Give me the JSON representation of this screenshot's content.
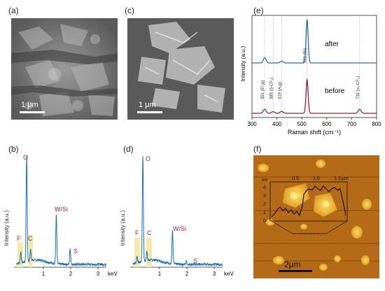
{
  "panels": {
    "a": {
      "label": "(a)",
      "scale": "1 μm"
    },
    "b": {
      "label": "(b)",
      "ylabel": "Intensity (a.u.)",
      "xunit": "keV",
      "xticks": [
        "1",
        "2",
        "3"
      ],
      "peaks": {
        "O": "O",
        "F": "F",
        "C": "C",
        "WSi": "W/Si",
        "S": "S"
      }
    },
    "c": {
      "label": "(c)",
      "scale": "1 μm"
    },
    "d": {
      "label": "(d)",
      "ylabel": "Intensity (a.u.)",
      "xunit": "keV",
      "xticks": [
        "1",
        "2",
        "3"
      ],
      "peaks": {
        "O": "O",
        "F": "F",
        "C": "C",
        "WSi": "W/Si",
        "S": "S"
      }
    },
    "e": {
      "label": "(e)"
    },
    "f": {
      "label": "(f)",
      "scale": "2μm",
      "inset": {
        "xunit": "μm",
        "yunit": "nm",
        "xticks": [
          "0.5",
          "1.0",
          "1.5"
        ],
        "yticks": [
          "4",
          "3",
          "2",
          "1",
          "0"
        ]
      }
    }
  },
  "chart_data": [
    {
      "type": "bar",
      "panel": "b",
      "title": "",
      "xlabel": "keV",
      "ylabel": "Intensity (a.u.)",
      "xlim": [
        0,
        3.8
      ],
      "ylim": [
        0,
        100
      ],
      "peaks_kev": [
        0.28,
        0.52,
        0.68,
        1.74,
        2.31
      ],
      "peak_labels": [
        "C",
        "O",
        "F",
        "W/Si",
        "S"
      ],
      "relative_heights": [
        10,
        96,
        10,
        44,
        14
      ]
    },
    {
      "type": "bar",
      "panel": "d",
      "title": "",
      "xlabel": "keV",
      "ylabel": "Intensity (a.u.)",
      "xlim": [
        0,
        3.8
      ],
      "ylim": [
        0,
        100
      ],
      "peaks_kev": [
        0.28,
        0.52,
        0.68,
        1.74,
        2.31
      ],
      "peak_labels": [
        "C",
        "O",
        "F",
        "W/Si",
        "S"
      ],
      "relative_heights": [
        6,
        96,
        8,
        30,
        3
      ]
    },
    {
      "type": "line",
      "panel": "e",
      "title": "",
      "xlabel": "Raman shift (cm⁻¹)",
      "ylabel": "Intensity (a.u.)",
      "xlim": [
        300,
        800
      ],
      "xticks": [
        300,
        400,
        500,
        600,
        700,
        800
      ],
      "series": [
        {
          "name": "after",
          "color": "#2a6fb0",
          "peaks": [
            [
              351,
              0.12
            ],
            [
              419,
              0.04
            ],
            [
              521,
              1.0
            ]
          ]
        },
        {
          "name": "before",
          "color": "#a01e3c",
          "peaks": [
            [
              351,
              0.12
            ],
            [
              385,
              0.05
            ],
            [
              419,
              0.06
            ],
            [
              521,
              1.0
            ],
            [
              732,
              0.12
            ]
          ]
        }
      ],
      "annotations": [
        "351 (E¹₂g)",
        "385 (δ-CF₃)",
        "419 (A₁g)",
        "521 (Si)",
        "732 (νₛ-CF₃)"
      ],
      "annotation_x": [
        351,
        385,
        419,
        521,
        732
      ]
    }
  ]
}
